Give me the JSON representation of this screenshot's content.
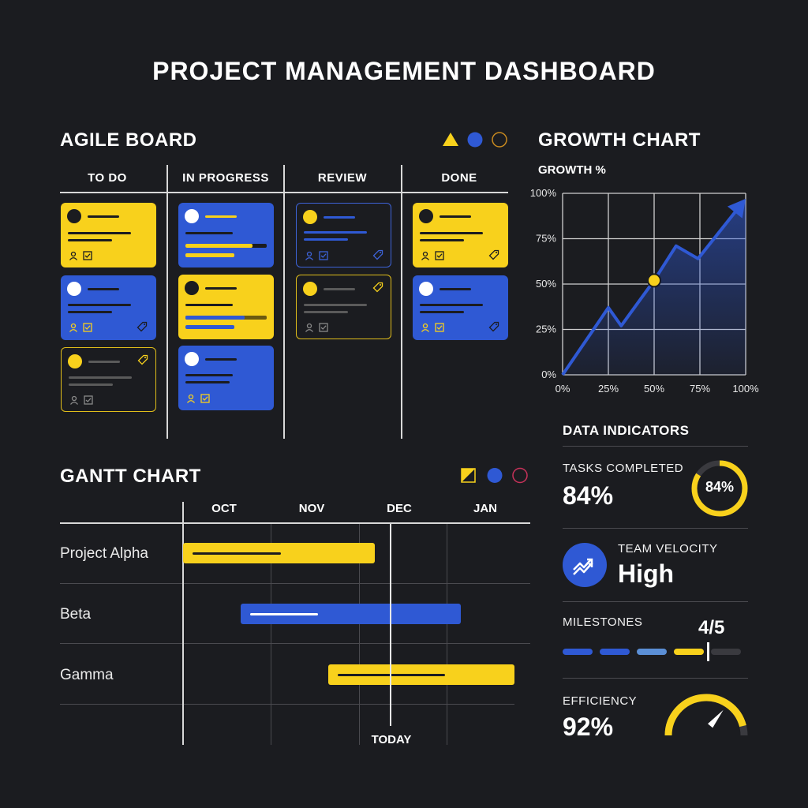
{
  "title": "PROJECT MANAGEMENT DASHBOARD",
  "agile": {
    "title": "AGILE BOARD",
    "columns": [
      "TO DO",
      "IN PROGRESS",
      "REVIEW",
      "DONE"
    ]
  },
  "growth": {
    "title": "GROWTH CHART",
    "subtitle": "GROWTH %"
  },
  "chart_data": {
    "type": "area",
    "title": "GROWTH CHART",
    "ylabel": "GROWTH %",
    "xlabel": "",
    "x": [
      0,
      25,
      32,
      50,
      62,
      74,
      100
    ],
    "y": [
      0,
      37,
      27,
      52,
      71,
      64,
      97
    ],
    "highlight_point": {
      "x": 50,
      "y": 52
    },
    "x_ticks": [
      "0%",
      "25%",
      "50%",
      "75%",
      "100%"
    ],
    "y_ticks": [
      "0%",
      "25%",
      "50%",
      "75%",
      "100%"
    ],
    "xlim": [
      0,
      100
    ],
    "ylim": [
      0,
      100
    ],
    "grid": true,
    "colors": {
      "line": "#2f59d4",
      "point": "#f8d11c"
    }
  },
  "gantt": {
    "title": "GANTT CHART",
    "months": [
      "OCT",
      "NOV",
      "DEC",
      "JAN"
    ],
    "rows": [
      {
        "label": "Project Alpha",
        "color": "#f8d11c"
      },
      {
        "label": "Beta",
        "color": "#2f59d4"
      },
      {
        "label": "Gamma",
        "color": "#f8d11c"
      }
    ],
    "today_label": "TODAY"
  },
  "indicators": {
    "title": "DATA INDICATORS",
    "tasks": {
      "label": "TASKS COMPLETED",
      "value": "84%",
      "ring_value": "84%",
      "percent": 84
    },
    "velocity": {
      "label": "TEAM VELOCITY",
      "value": "High"
    },
    "milestones": {
      "label": "MILESTONES",
      "value": "4/5",
      "completed": 4,
      "total": 5
    },
    "efficiency": {
      "label": "EFFICIENCY",
      "value": "92%",
      "percent": 92
    }
  },
  "colors": {
    "yellow": "#f8d11c",
    "blue": "#2f59d4",
    "bg": "#1b1c20"
  }
}
